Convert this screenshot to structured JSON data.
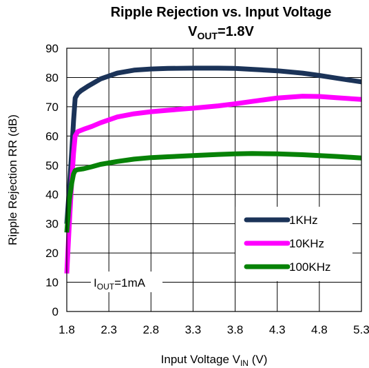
{
  "chart_data": {
    "type": "line",
    "title": "Ripple Rejection vs. Input Voltage",
    "subtitle": {
      "prefix": "V",
      "sub": "OUT",
      "suffix": "=1.8V"
    },
    "xlabel": {
      "prefix": "Input Voltage V",
      "sub": "IN",
      "suffix": " (V)"
    },
    "ylabel": "Ripple Rejection RR (dB)",
    "xlim": [
      1.8,
      5.3
    ],
    "ylim": [
      0,
      90
    ],
    "xticks": [
      "1.8",
      "2.3",
      "2.8",
      "3.3",
      "3.8",
      "4.3",
      "4.8",
      "5.3"
    ],
    "yticks": [
      "0",
      "10",
      "20",
      "30",
      "40",
      "50",
      "60",
      "70",
      "80",
      "90"
    ],
    "grid": true,
    "legend_position": "right-center",
    "annotation": {
      "prefix": "I",
      "sub": "OUT",
      "suffix": "=1mA"
    },
    "series": [
      {
        "name": "1KHz",
        "color": "#1b3358",
        "x": [
          1.8,
          1.83,
          1.86,
          1.88,
          1.9,
          1.93,
          1.97,
          2.05,
          2.2,
          2.4,
          2.6,
          2.8,
          3.0,
          3.3,
          3.6,
          3.8,
          4.0,
          4.3,
          4.6,
          4.8,
          5.0,
          5.3
        ],
        "y": [
          30,
          42,
          55,
          65,
          73,
          74.5,
          75.5,
          77,
          79.5,
          81.5,
          82.5,
          82.9,
          83.1,
          83.2,
          83.2,
          83.1,
          82.8,
          82.3,
          81.5,
          80.7,
          79.8,
          78.5
        ]
      },
      {
        "name": "10KHz",
        "color": "#ff00ff",
        "x": [
          1.8,
          1.83,
          1.86,
          1.88,
          1.9,
          1.93,
          2.0,
          2.1,
          2.2,
          2.4,
          2.6,
          2.8,
          3.0,
          3.3,
          3.6,
          3.8,
          4.0,
          4.3,
          4.6,
          4.8,
          5.0,
          5.3
        ],
        "y": [
          13,
          30,
          45,
          54,
          60,
          61.5,
          62.3,
          63.3,
          64.5,
          66.5,
          67.6,
          68.3,
          68.8,
          69.5,
          70.3,
          71,
          71.8,
          73,
          73.6,
          73.5,
          73.1,
          72.5
        ]
      },
      {
        "name": "100KHz",
        "color": "#078207",
        "x": [
          1.8,
          1.83,
          1.86,
          1.88,
          1.9,
          1.93,
          2.0,
          2.1,
          2.2,
          2.4,
          2.6,
          2.8,
          3.0,
          3.3,
          3.6,
          3.8,
          4.0,
          4.3,
          4.6,
          4.8,
          5.0,
          5.3
        ],
        "y": [
          27,
          38,
          44,
          47,
          48.2,
          48.5,
          48.8,
          49.5,
          50.3,
          51.3,
          52.1,
          52.6,
          52.9,
          53.3,
          53.7,
          53.9,
          54,
          53.9,
          53.6,
          53.3,
          53,
          52.5
        ]
      }
    ]
  }
}
